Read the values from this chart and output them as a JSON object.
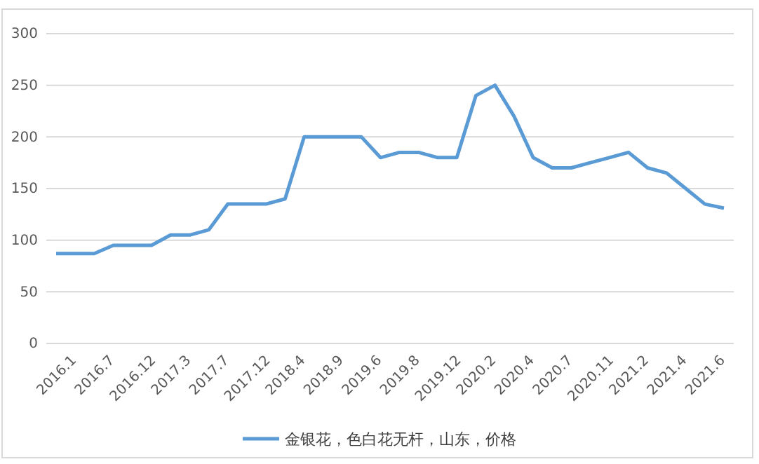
{
  "chart_data": {
    "type": "line",
    "categories": [
      "2016.1",
      null,
      "2016.7",
      null,
      "2016.12",
      null,
      "2017.3",
      null,
      "2017.7",
      null,
      "2017.12",
      null,
      "2018.4",
      null,
      "2018.9",
      null,
      "2019.6",
      null,
      "2019.8",
      null,
      "2019.12",
      null,
      "2020.2",
      null,
      "2020.4",
      null,
      "2020.7",
      null,
      "2020.11",
      null,
      "2021.2",
      null,
      "2021.4",
      null,
      "2021.6",
      null
    ],
    "series": [
      {
        "name": "金银花，色白花无杆，山东，价格",
        "color": "#5b9bd5",
        "values": [
          87,
          87,
          87,
          95,
          95,
          95,
          105,
          105,
          110,
          135,
          135,
          135,
          140,
          200,
          200,
          200,
          200,
          180,
          185,
          185,
          180,
          180,
          240,
          250,
          220,
          180,
          170,
          170,
          175,
          180,
          185,
          170,
          165,
          150,
          135,
          131
        ]
      }
    ],
    "ylim": [
      0,
      300
    ],
    "yticks": [
      0,
      50,
      100,
      150,
      200,
      250,
      300
    ],
    "grid": "y",
    "legend": "bottom",
    "marker": "none",
    "line_style": "solid"
  }
}
